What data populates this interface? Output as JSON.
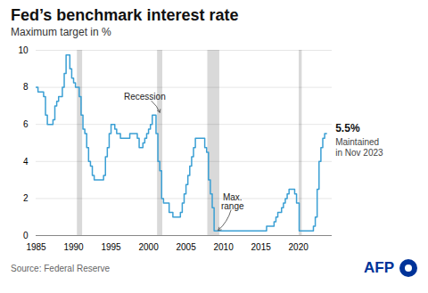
{
  "chart_data": {
    "type": "step",
    "title": "Fed’s benchmark interest rate",
    "subtitle": "Maximum target in %",
    "source": "Source: Federal Reserve",
    "logo": "AFP",
    "logo_color": "#003399",
    "color": "#3a9fd4",
    "grid": "y",
    "xlim": [
      1985,
      2024.5
    ],
    "ylim": [
      0,
      10
    ],
    "xticks": [
      1985,
      1990,
      1995,
      2000,
      2005,
      2010,
      2015,
      2020
    ],
    "yticks": [
      0,
      2,
      4,
      6,
      8,
      10
    ],
    "recessions": [
      [
        1990.5,
        1991.2
      ],
      [
        2001.2,
        2001.9
      ],
      [
        2007.9,
        2009.5
      ],
      [
        2020.1,
        2020.5
      ]
    ],
    "annotations": [
      {
        "text": "Recession",
        "x": 1999.5,
        "y": 7.5,
        "target_x": 2001.55,
        "target_y": 6.6
      },
      {
        "text": "Max.\nrange",
        "x": 2011.2,
        "y": 1.8,
        "target_x": 2009.2,
        "target_y": 0.25
      }
    ],
    "end_labels": [
      "5.5%",
      "Maintained\nin Nov 2023"
    ],
    "x": [
      1985.0,
      1985.25,
      1985.5,
      1985.75,
      1986.0,
      1986.25,
      1986.5,
      1986.75,
      1987.0,
      1987.25,
      1987.5,
      1987.75,
      1988.0,
      1988.25,
      1988.5,
      1988.75,
      1989.0,
      1989.25,
      1989.5,
      1989.75,
      1990.0,
      1990.25,
      1990.5,
      1990.75,
      1991.0,
      1991.25,
      1991.5,
      1991.75,
      1992.0,
      1992.25,
      1992.5,
      1992.75,
      1993.0,
      1993.25,
      1993.5,
      1993.75,
      1994.0,
      1994.25,
      1994.5,
      1994.75,
      1995.0,
      1995.25,
      1995.5,
      1995.75,
      1996.0,
      1996.25,
      1996.5,
      1996.75,
      1997.0,
      1997.25,
      1997.5,
      1997.75,
      1998.0,
      1998.25,
      1998.5,
      1998.75,
      1999.0,
      1999.25,
      1999.5,
      1999.75,
      2000.0,
      2000.25,
      2000.5,
      2000.75,
      2001.0,
      2001.25,
      2001.5,
      2001.75,
      2002.0,
      2002.25,
      2002.5,
      2002.75,
      2003.0,
      2003.25,
      2003.5,
      2003.75,
      2004.0,
      2004.25,
      2004.5,
      2004.75,
      2005.0,
      2005.25,
      2005.5,
      2005.75,
      2006.0,
      2006.25,
      2006.5,
      2006.75,
      2007.0,
      2007.25,
      2007.5,
      2007.75,
      2008.0,
      2008.25,
      2008.5,
      2008.75,
      2009.0,
      2009.25,
      2009.5,
      2009.75,
      2010.0,
      2010.25,
      2010.5,
      2010.75,
      2011.0,
      2011.25,
      2011.5,
      2011.75,
      2012.0,
      2012.25,
      2012.5,
      2012.75,
      2013.0,
      2013.25,
      2013.5,
      2013.75,
      2014.0,
      2014.25,
      2014.5,
      2014.75,
      2015.0,
      2015.25,
      2015.5,
      2015.75,
      2016.0,
      2016.25,
      2016.5,
      2016.75,
      2017.0,
      2017.25,
      2017.5,
      2017.75,
      2018.0,
      2018.25,
      2018.5,
      2018.75,
      2019.0,
      2019.25,
      2019.5,
      2019.75,
      2020.0,
      2020.1,
      2020.25,
      2020.5,
      2020.75,
      2021.0,
      2021.25,
      2021.5,
      2021.75,
      2022.0,
      2022.25,
      2022.5,
      2022.75,
      2023.0,
      2023.25,
      2023.5,
      2023.75
    ],
    "values": [
      8.0,
      7.75,
      7.75,
      7.75,
      7.5,
      6.5,
      6.0,
      6.0,
      6.0,
      6.25,
      7.0,
      7.25,
      7.5,
      7.5,
      8.0,
      8.75,
      9.75,
      9.75,
      9.0,
      8.5,
      8.25,
      8.0,
      8.0,
      7.5,
      6.5,
      5.75,
      5.5,
      4.75,
      4.0,
      3.75,
      3.25,
      3.0,
      3.0,
      3.0,
      3.0,
      3.0,
      3.25,
      4.25,
      4.75,
      5.5,
      6.0,
      6.0,
      5.75,
      5.5,
      5.5,
      5.25,
      5.25,
      5.25,
      5.25,
      5.25,
      5.5,
      5.5,
      5.5,
      5.5,
      5.25,
      4.75,
      4.75,
      5.0,
      5.25,
      5.5,
      5.75,
      6.0,
      6.5,
      6.5,
      5.5,
      4.0,
      3.5,
      2.0,
      1.75,
      1.75,
      1.75,
      1.25,
      1.25,
      1.0,
      1.0,
      1.0,
      1.0,
      1.25,
      1.75,
      2.25,
      2.75,
      3.25,
      3.75,
      4.25,
      4.75,
      5.25,
      5.25,
      5.25,
      5.25,
      5.25,
      4.75,
      4.5,
      3.0,
      2.25,
      1.5,
      0.25,
      0.25,
      0.25,
      0.25,
      0.25,
      0.25,
      0.25,
      0.25,
      0.25,
      0.25,
      0.25,
      0.25,
      0.25,
      0.25,
      0.25,
      0.25,
      0.25,
      0.25,
      0.25,
      0.25,
      0.25,
      0.25,
      0.25,
      0.25,
      0.25,
      0.25,
      0.25,
      0.25,
      0.5,
      0.5,
      0.5,
      0.5,
      0.75,
      1.0,
      1.25,
      1.25,
      1.5,
      1.75,
      2.0,
      2.25,
      2.5,
      2.5,
      2.5,
      2.25,
      1.75,
      1.75,
      0.25,
      0.25,
      0.25,
      0.25,
      0.25,
      0.25,
      0.25,
      0.25,
      0.5,
      1.0,
      2.5,
      4.0,
      4.75,
      5.25,
      5.5,
      5.5
    ]
  }
}
